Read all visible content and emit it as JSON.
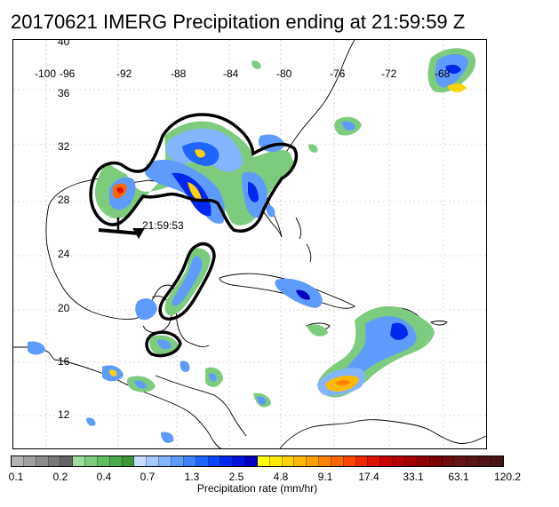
{
  "title": "20170621 IMERG Precipitation ending at 21:59:59 Z",
  "map": {
    "longitude_labels": [
      "-100",
      "-96",
      "-92",
      "-88",
      "-84",
      "-80",
      "-76",
      "-72",
      "-68"
    ],
    "latitude_labels": [
      "40",
      "36",
      "32",
      "28",
      "24",
      "20",
      "16",
      "12"
    ],
    "storm_time_label": "21:59:53"
  },
  "colorbar": {
    "colors": [
      "#b4b4b4",
      "#a0a0a0",
      "#8c8c8c",
      "#787878",
      "#646464",
      "#9fdc9f",
      "#7dcc7d",
      "#5fbc5f",
      "#4aaa4a",
      "#3c963c",
      "#c8dcff",
      "#a5c8ff",
      "#82b4ff",
      "#5f9bff",
      "#3c82ff",
      "#1e64ff",
      "#0a46ff",
      "#0028f0",
      "#0014dc",
      "#0000be",
      "#ffff00",
      "#ffeb00",
      "#ffd200",
      "#ffb900",
      "#ffa000",
      "#ff8200",
      "#ff6400",
      "#ff4600",
      "#f02800",
      "#dc1400",
      "#c80000",
      "#b40000",
      "#a00000",
      "#8c0000",
      "#780000",
      "#6e0a0a",
      "#641414",
      "#5a1414",
      "#501414",
      "#461414"
    ],
    "tick_labels": [
      "0.1",
      "0.2",
      "0.4",
      "0.7",
      "1.3",
      "2.5",
      "4.8",
      "9.1",
      "17.4",
      "33.1",
      "63.1",
      "120.2"
    ],
    "units_label": "Precipitation rate (mm/hr)"
  }
}
